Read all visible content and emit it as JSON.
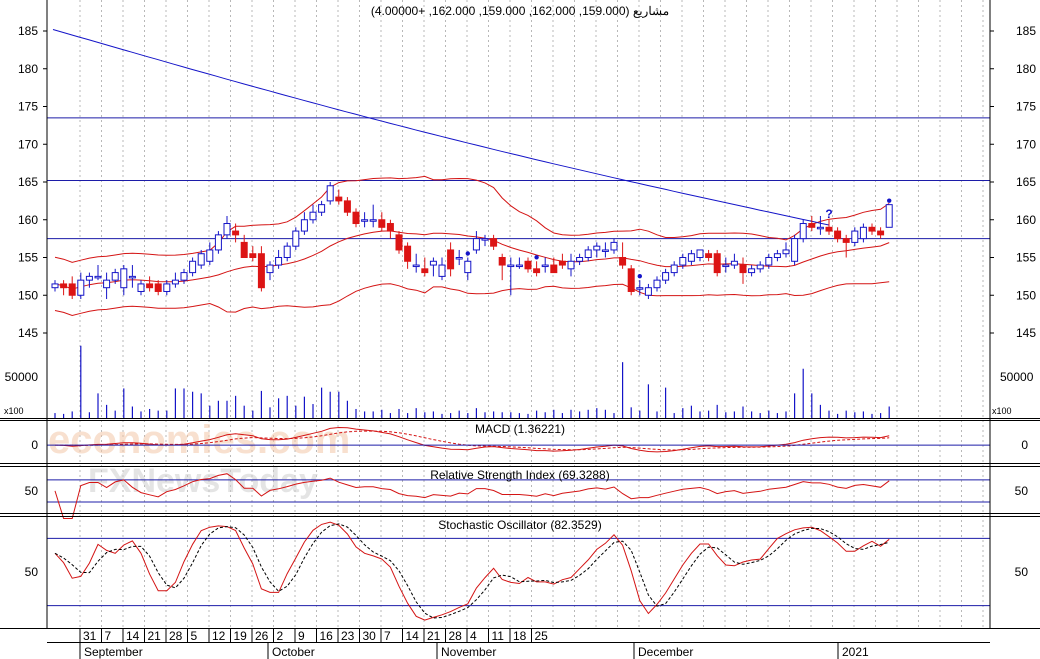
{
  "chart_data": {
    "type": "candlestick",
    "title": "مشاريع (159.000, 162.000, 159.000, 162.000, +4.00000)",
    "watermark": {
      "line1": "economies.com",
      "line2": "FXNewsToday"
    },
    "price_axis": {
      "ylim": [
        141,
        187
      ],
      "ticks": [
        145,
        150,
        155,
        160,
        165,
        170,
        175,
        180,
        185
      ]
    },
    "volume_axis": {
      "ylim": [
        0,
        95000
      ],
      "ticks": [
        {
          "value": 50000,
          "label": "50000"
        }
      ],
      "unit_label": "x100"
    },
    "day_labels": [
      "31",
      "7",
      "14",
      "21",
      "28",
      "5",
      "12",
      "19",
      "26",
      "2",
      "9",
      "16",
      "23",
      "30",
      "7",
      "14",
      "21",
      "28",
      "4",
      "11",
      "18",
      "25"
    ],
    "month_labels": [
      "September",
      "October",
      "November",
      "December",
      "2021"
    ],
    "horizontal_lines": [
      173.5,
      165.2,
      157.5
    ],
    "candles": [
      {
        "o": 151.0,
        "h": 152.0,
        "l": 150.5,
        "c": 151.5,
        "v": 6000
      },
      {
        "o": 151.5,
        "h": 152.0,
        "l": 150.0,
        "c": 151.0,
        "v": 5000
      },
      {
        "o": 151.5,
        "h": 152.5,
        "l": 149.5,
        "c": 150.0,
        "v": 8000
      },
      {
        "o": 150.0,
        "h": 153.0,
        "l": 149.5,
        "c": 152.0,
        "v": 88000
      },
      {
        "o": 152.0,
        "h": 153.0,
        "l": 151.0,
        "c": 152.5,
        "v": 7000
      },
      {
        "o": 152.5,
        "h": 154.0,
        "l": 152.0,
        "c": 152.5,
        "v": 30000
      },
      {
        "o": 151.0,
        "h": 153.0,
        "l": 149.5,
        "c": 152.0,
        "v": 16000
      },
      {
        "o": 152.0,
        "h": 153.5,
        "l": 151.5,
        "c": 153.0,
        "v": 9000
      },
      {
        "o": 151.0,
        "h": 154.0,
        "l": 150.0,
        "c": 153.5,
        "v": 36000
      },
      {
        "o": 152.5,
        "h": 154.0,
        "l": 151.0,
        "c": 152.5,
        "v": 14000
      },
      {
        "o": 150.5,
        "h": 152.0,
        "l": 150.0,
        "c": 151.5,
        "v": 8000
      },
      {
        "o": 151.5,
        "h": 152.5,
        "l": 150.5,
        "c": 151.0,
        "v": 11000
      },
      {
        "o": 151.5,
        "h": 152.0,
        "l": 150.0,
        "c": 150.5,
        "v": 9000
      },
      {
        "o": 150.5,
        "h": 152.0,
        "l": 150.0,
        "c": 151.5,
        "v": 9000
      },
      {
        "o": 151.5,
        "h": 153.0,
        "l": 151.0,
        "c": 152.0,
        "v": 36000
      },
      {
        "o": 152.0,
        "h": 153.5,
        "l": 151.5,
        "c": 153.0,
        "v": 36000
      },
      {
        "o": 153.0,
        "h": 155.0,
        "l": 152.5,
        "c": 154.5,
        "v": 32000
      },
      {
        "o": 154.0,
        "h": 156.0,
        "l": 153.5,
        "c": 155.5,
        "v": 30000
      },
      {
        "o": 154.5,
        "h": 157.0,
        "l": 154.0,
        "c": 156.0,
        "v": 15000
      },
      {
        "o": 156.0,
        "h": 158.5,
        "l": 155.5,
        "c": 158.0,
        "v": 21000
      },
      {
        "o": 158.0,
        "h": 160.5,
        "l": 157.5,
        "c": 159.5,
        "v": 21000
      },
      {
        "o": 158.5,
        "h": 159.5,
        "l": 157.0,
        "c": 158.0,
        "v": 27000
      },
      {
        "o": 157.0,
        "h": 158.0,
        "l": 155.0,
        "c": 155.0,
        "v": 15000
      },
      {
        "o": 155.5,
        "h": 156.5,
        "l": 154.5,
        "c": 155.0,
        "v": 9000
      },
      {
        "o": 155.5,
        "h": 156.5,
        "l": 150.5,
        "c": 151.0,
        "v": 33000
      },
      {
        "o": 153.0,
        "h": 154.5,
        "l": 152.0,
        "c": 154.0,
        "v": 13000
      },
      {
        "o": 154.0,
        "h": 156.0,
        "l": 153.5,
        "c": 155.0,
        "v": 24000
      },
      {
        "o": 155.0,
        "h": 157.0,
        "l": 154.5,
        "c": 156.5,
        "v": 27000
      },
      {
        "o": 156.5,
        "h": 159.0,
        "l": 156.0,
        "c": 158.5,
        "v": 15000
      },
      {
        "o": 158.5,
        "h": 161.0,
        "l": 158.0,
        "c": 160.0,
        "v": 26000
      },
      {
        "o": 160.0,
        "h": 162.0,
        "l": 159.5,
        "c": 161.0,
        "v": 17000
      },
      {
        "o": 161.0,
        "h": 162.5,
        "l": 160.5,
        "c": 162.0,
        "v": 37000
      },
      {
        "o": 162.5,
        "h": 165.0,
        "l": 162.0,
        "c": 164.5,
        "v": 32000
      },
      {
        "o": 163.0,
        "h": 164.0,
        "l": 162.0,
        "c": 162.5,
        "v": 32000
      },
      {
        "o": 162.5,
        "h": 163.0,
        "l": 160.5,
        "c": 161.0,
        "v": 21000
      },
      {
        "o": 161.0,
        "h": 161.5,
        "l": 159.0,
        "c": 159.5,
        "v": 11000
      },
      {
        "o": 160.0,
        "h": 161.0,
        "l": 159.0,
        "c": 160.0,
        "v": 8000
      },
      {
        "o": 160.0,
        "h": 162.0,
        "l": 159.0,
        "c": 160.0,
        "v": 8000
      },
      {
        "o": 160.0,
        "h": 161.0,
        "l": 158.5,
        "c": 159.0,
        "v": 10000
      },
      {
        "o": 159.5,
        "h": 160.0,
        "l": 157.5,
        "c": 158.5,
        "v": 6000
      },
      {
        "o": 158.0,
        "h": 158.5,
        "l": 155.5,
        "c": 156.0,
        "v": 11000
      },
      {
        "o": 156.5,
        "h": 157.0,
        "l": 153.5,
        "c": 154.5,
        "v": 6000
      },
      {
        "o": 154.0,
        "h": 155.5,
        "l": 153.0,
        "c": 154.0,
        "v": 12000
      },
      {
        "o": 153.5,
        "h": 155.0,
        "l": 152.5,
        "c": 153.0,
        "v": 7000
      },
      {
        "o": 154.0,
        "h": 155.0,
        "l": 152.5,
        "c": 154.5,
        "v": 8000
      },
      {
        "o": 152.5,
        "h": 155.0,
        "l": 152.0,
        "c": 154.0,
        "v": 5000
      },
      {
        "o": 156.0,
        "h": 157.0,
        "l": 152.5,
        "c": 153.5,
        "v": 6000
      },
      {
        "o": 155.0,
        "h": 156.0,
        "l": 154.0,
        "c": 155.0,
        "v": 9000
      },
      {
        "o": 153.0,
        "h": 155.0,
        "l": 152.0,
        "c": 154.5,
        "v": 6000
      },
      {
        "o": 156.0,
        "h": 158.5,
        "l": 155.5,
        "c": 157.5,
        "v": 12000
      },
      {
        "o": 157.5,
        "h": 158.0,
        "l": 156.5,
        "c": 157.5,
        "v": 7000
      },
      {
        "o": 157.5,
        "h": 158.0,
        "l": 156.0,
        "c": 156.5,
        "v": 8000
      },
      {
        "o": 155.0,
        "h": 155.5,
        "l": 152.0,
        "c": 154.0,
        "v": 7000
      },
      {
        "o": 154.0,
        "h": 155.0,
        "l": 150.0,
        "c": 154.0,
        "v": 7000
      },
      {
        "o": 154.0,
        "h": 155.0,
        "l": 153.5,
        "c": 154.0,
        "v": 6000
      },
      {
        "o": 154.5,
        "h": 155.0,
        "l": 153.0,
        "c": 153.5,
        "v": 5000
      },
      {
        "o": 153.5,
        "h": 154.5,
        "l": 152.5,
        "c": 153.0,
        "v": 9000
      },
      {
        "o": 154.0,
        "h": 155.0,
        "l": 153.0,
        "c": 154.0,
        "v": 7000
      },
      {
        "o": 154.0,
        "h": 155.0,
        "l": 153.0,
        "c": 153.0,
        "v": 10000
      },
      {
        "o": 154.5,
        "h": 155.5,
        "l": 153.5,
        "c": 154.0,
        "v": 6000
      },
      {
        "o": 153.5,
        "h": 155.5,
        "l": 152.5,
        "c": 154.5,
        "v": 10000
      },
      {
        "o": 154.5,
        "h": 155.5,
        "l": 154.0,
        "c": 155.0,
        "v": 8000
      },
      {
        "o": 155.0,
        "h": 156.5,
        "l": 154.5,
        "c": 156.0,
        "v": 10000
      },
      {
        "o": 156.0,
        "h": 157.0,
        "l": 155.0,
        "c": 156.5,
        "v": 12000
      },
      {
        "o": 156.0,
        "h": 157.0,
        "l": 155.0,
        "c": 156.0,
        "v": 10000
      },
      {
        "o": 156.0,
        "h": 157.5,
        "l": 155.5,
        "c": 157.0,
        "v": 6000
      },
      {
        "o": 155.0,
        "h": 157.0,
        "l": 153.5,
        "c": 154.0,
        "v": 68000
      },
      {
        "o": 153.5,
        "h": 154.0,
        "l": 150.0,
        "c": 150.5,
        "v": 13000
      },
      {
        "o": 151.0,
        "h": 152.0,
        "l": 150.0,
        "c": 151.0,
        "v": 9000
      },
      {
        "o": 150.0,
        "h": 151.5,
        "l": 149.5,
        "c": 151.0,
        "v": 41000
      },
      {
        "o": 151.0,
        "h": 152.5,
        "l": 150.5,
        "c": 152.0,
        "v": 8000
      },
      {
        "o": 152.0,
        "h": 153.5,
        "l": 151.5,
        "c": 153.0,
        "v": 37000
      },
      {
        "o": 153.0,
        "h": 154.5,
        "l": 152.5,
        "c": 154.0,
        "v": 6000
      },
      {
        "o": 154.0,
        "h": 155.5,
        "l": 153.5,
        "c": 155.0,
        "v": 12000
      },
      {
        "o": 154.5,
        "h": 156.0,
        "l": 154.0,
        "c": 155.5,
        "v": 15000
      },
      {
        "o": 155.0,
        "h": 156.0,
        "l": 154.5,
        "c": 156.0,
        "v": 8000
      },
      {
        "o": 155.5,
        "h": 156.0,
        "l": 154.5,
        "c": 155.0,
        "v": 9000
      },
      {
        "o": 155.5,
        "h": 156.0,
        "l": 152.5,
        "c": 153.0,
        "v": 16000
      },
      {
        "o": 154.0,
        "h": 155.0,
        "l": 153.0,
        "c": 154.0,
        "v": 7000
      },
      {
        "o": 154.0,
        "h": 155.5,
        "l": 153.5,
        "c": 154.5,
        "v": 8000
      },
      {
        "o": 154.0,
        "h": 155.0,
        "l": 151.5,
        "c": 153.0,
        "v": 14000
      },
      {
        "o": 153.0,
        "h": 154.0,
        "l": 152.5,
        "c": 153.5,
        "v": 8000
      },
      {
        "o": 153.5,
        "h": 154.5,
        "l": 153.0,
        "c": 154.0,
        "v": 6000
      },
      {
        "o": 154.0,
        "h": 155.5,
        "l": 153.5,
        "c": 155.0,
        "v": 9000
      },
      {
        "o": 155.0,
        "h": 156.0,
        "l": 154.5,
        "c": 155.5,
        "v": 6000
      },
      {
        "o": 155.5,
        "h": 157.0,
        "l": 155.0,
        "c": 156.0,
        "v": 8000
      },
      {
        "o": 154.5,
        "h": 158.0,
        "l": 154.0,
        "c": 157.5,
        "v": 30000
      },
      {
        "o": 157.5,
        "h": 160.0,
        "l": 157.0,
        "c": 159.5,
        "v": 60000
      },
      {
        "o": 159.5,
        "h": 160.5,
        "l": 158.5,
        "c": 159.0,
        "v": 30000
      },
      {
        "o": 159.0,
        "h": 160.5,
        "l": 158.0,
        "c": 159.0,
        "v": 16000
      },
      {
        "o": 159.0,
        "h": 160.0,
        "l": 158.0,
        "c": 158.5,
        "v": 9000
      },
      {
        "o": 158.5,
        "h": 159.0,
        "l": 157.0,
        "c": 157.5,
        "v": 5000
      },
      {
        "o": 157.5,
        "h": 158.0,
        "l": 155.0,
        "c": 157.0,
        "v": 9000
      },
      {
        "o": 157.0,
        "h": 159.0,
        "l": 156.5,
        "c": 158.5,
        "v": 7000
      },
      {
        "o": 157.5,
        "h": 159.5,
        "l": 157.0,
        "c": 159.0,
        "v": 8000
      },
      {
        "o": 159.0,
        "h": 159.5,
        "l": 158.0,
        "c": 158.5,
        "v": 5000
      },
      {
        "o": 158.5,
        "h": 159.0,
        "l": 157.5,
        "c": 158.0,
        "v": 6000
      },
      {
        "o": 159.0,
        "h": 162.0,
        "l": 159.0,
        "c": 162.0,
        "v": 14000
      }
    ],
    "markers": [
      {
        "index": 48,
        "shape": "dot"
      },
      {
        "index": 56,
        "shape": "dot"
      },
      {
        "index": 68,
        "shape": "dot"
      },
      {
        "index": 97,
        "shape": "dot"
      },
      {
        "index": 90,
        "shape": "question"
      }
    ],
    "moving_average": {
      "from": 185.2,
      "to": 159.3
    },
    "panels": [
      {
        "id": "macd",
        "label": "MACD (1.36221)",
        "ticks": [
          {
            "value": 0,
            "label": "0"
          }
        ],
        "ylim": [
          -2.5,
          3.5
        ]
      },
      {
        "id": "rsi",
        "label": "Relative Strength Index (69.3288)",
        "ticks": [
          {
            "value": 50,
            "label": "50"
          }
        ],
        "ylim": [
          10,
          95
        ],
        "levels": [
          70,
          30
        ]
      },
      {
        "id": "stochastic",
        "label": "Stochastic Oscillator (82.3529)",
        "ticks": [
          {
            "value": 50,
            "label": "50"
          }
        ],
        "ylim": [
          0,
          100
        ],
        "levels": [
          80,
          20
        ]
      }
    ]
  }
}
